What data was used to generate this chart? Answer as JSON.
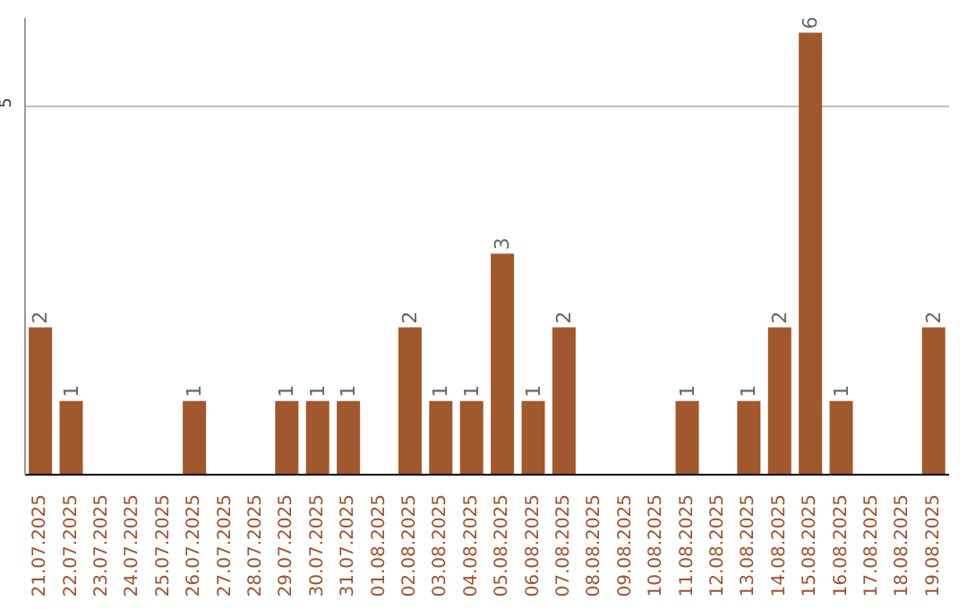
{
  "chart_data": {
    "type": "bar",
    "categories": [
      "21.07.2025",
      "22.07.2025",
      "23.07.2025",
      "24.07.2025",
      "25.07.2025",
      "26.07.2025",
      "27.07.2025",
      "28.07.2025",
      "29.07.2025",
      "30.07.2025",
      "31.07.2025",
      "01.08.2025",
      "02.08.2025",
      "03.08.2025",
      "04.08.2025",
      "05.08.2025",
      "06.08.2025",
      "07.08.2025",
      "08.08.2025",
      "09.08.2025",
      "10.08.2025",
      "11.08.2025",
      "12.08.2025",
      "13.08.2025",
      "14.08.2025",
      "15.08.2025",
      "16.08.2025",
      "17.08.2025",
      "18.08.2025",
      "19.08.2025"
    ],
    "values": [
      2,
      1,
      0,
      0,
      0,
      1,
      0,
      0,
      1,
      1,
      1,
      0,
      2,
      1,
      1,
      3,
      1,
      2,
      0,
      0,
      0,
      1,
      0,
      1,
      2,
      6,
      1,
      0,
      0,
      2
    ],
    "value_labels": [
      "2",
      "1",
      null,
      null,
      null,
      "1",
      null,
      null,
      "1",
      "1",
      "1",
      null,
      "2",
      "1",
      "1",
      "3",
      "1",
      "2",
      null,
      null,
      null,
      "1",
      null,
      "1",
      "2",
      "6",
      "1",
      null,
      null,
      "2"
    ],
    "color": "#a0582c",
    "ylim": [
      0,
      6.2
    ],
    "yticks": [
      5
    ],
    "grid": "y"
  }
}
